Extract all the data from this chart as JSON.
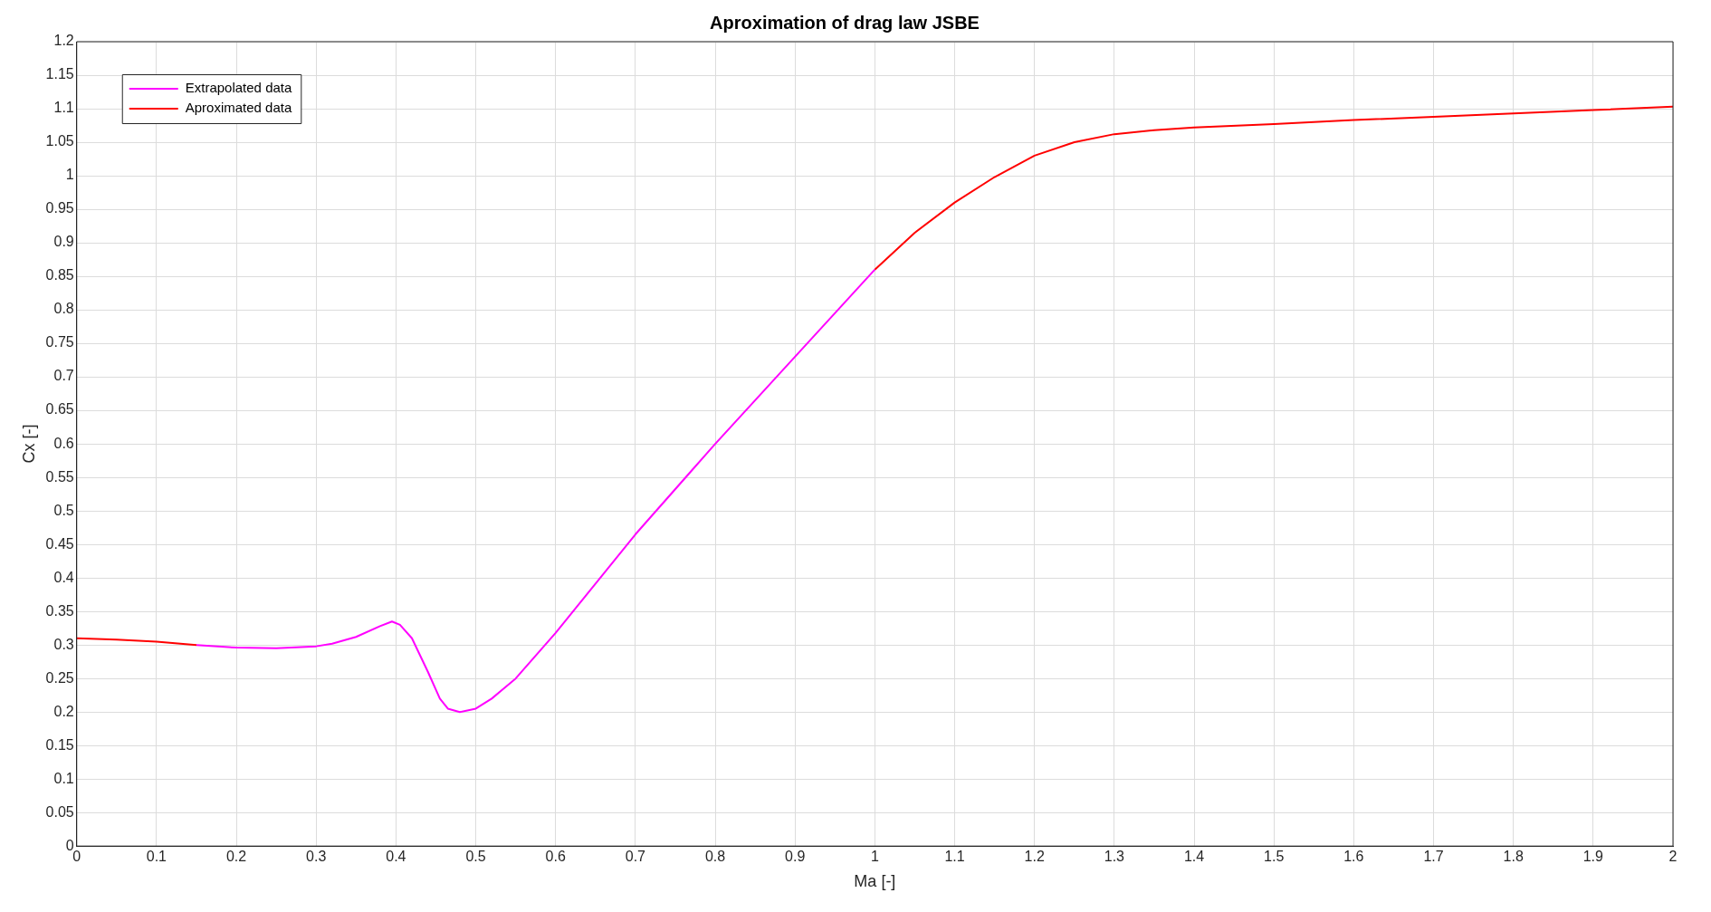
{
  "chart_data": {
    "type": "line",
    "title": "Aproximation of drag law JSBE",
    "xlabel": "Ma [-]",
    "ylabel": "Cx [-]",
    "xlim": [
      0,
      2
    ],
    "xticks": [
      0,
      0.1,
      0.2,
      0.3,
      0.4,
      0.5,
      0.6,
      0.7,
      0.8,
      0.9,
      1,
      1.1,
      1.2,
      1.3,
      1.4,
      1.5,
      1.6,
      1.7,
      1.8,
      1.9,
      2
    ],
    "ylim": [
      0,
      1.2
    ],
    "yticks": [
      0,
      0.05,
      0.1,
      0.15,
      0.2,
      0.25,
      0.3,
      0.35,
      0.4,
      0.45,
      0.5,
      0.55,
      0.6,
      0.65,
      0.7,
      0.75,
      0.8,
      0.85,
      0.9,
      0.95,
      1,
      1.05,
      1.1,
      1.15,
      1.2
    ],
    "grid": true,
    "legend": "top left",
    "marker": "none",
    "line_style": "solid",
    "series": [
      {
        "name": "Extrapolated data",
        "color": "#ff00ff",
        "x": [
          0.15,
          0.2,
          0.25,
          0.3,
          0.32,
          0.35,
          0.38,
          0.395,
          0.405,
          0.42,
          0.44,
          0.455,
          0.465,
          0.48,
          0.5,
          0.52,
          0.55,
          0.6,
          0.7,
          0.8,
          0.9,
          1.0
        ],
        "values": [
          0.3,
          0.296,
          0.295,
          0.298,
          0.302,
          0.312,
          0.328,
          0.335,
          0.33,
          0.31,
          0.26,
          0.22,
          0.205,
          0.2,
          0.205,
          0.22,
          0.25,
          0.318,
          0.465,
          0.6,
          0.73,
          0.86
        ]
      },
      {
        "name": "Aproximated data",
        "color": "#ff0000",
        "x": [
          0,
          0.05,
          0.1,
          0.15,
          0.5,
          1.0,
          1.05,
          1.1,
          1.15,
          1.2,
          1.25,
          1.3,
          1.35,
          1.4,
          1.5,
          1.6,
          1.7,
          1.8,
          1.9,
          2.0
        ],
        "values": [
          0.31,
          0.308,
          0.305,
          0.3,
          null,
          0.86,
          0.915,
          0.96,
          0.998,
          1.03,
          1.05,
          1.062,
          1.068,
          1.072,
          1.077,
          1.083,
          1.088,
          1.093,
          1.098,
          1.103
        ]
      }
    ]
  }
}
